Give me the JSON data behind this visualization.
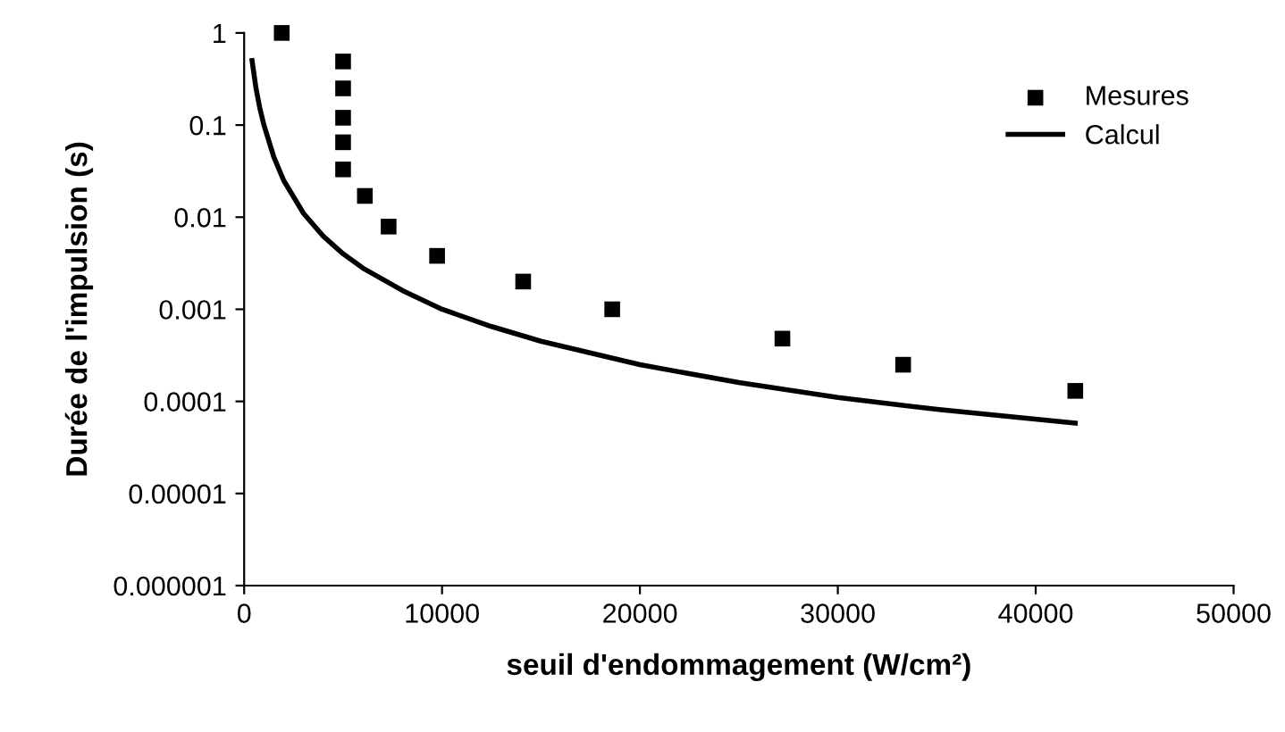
{
  "chart_data": {
    "type": "scatter",
    "xlabel": "seuil d'endommagement (W/cm²)",
    "ylabel": "Durée de l'impulsion (s)",
    "log": "y",
    "grid": false,
    "legend": "top right",
    "xlim": [
      0,
      50000
    ],
    "xticks": [
      0,
      10000,
      20000,
      30000,
      40000,
      50000
    ],
    "ylim": [
      1e-06,
      1
    ],
    "yticks": [
      {
        "value": 1e-06,
        "label": "0.000001"
      },
      {
        "value": 1e-05,
        "label": "0.00001"
      },
      {
        "value": 0.0001,
        "label": "0.0001"
      },
      {
        "value": 0.001,
        "label": "0.001"
      },
      {
        "value": 0.01,
        "label": "0.01"
      },
      {
        "value": 0.1,
        "label": "0.1"
      },
      {
        "value": 1,
        "label": "1"
      }
    ],
    "series": [
      {
        "name": "Mesures",
        "marker": "square",
        "color": "#000000",
        "x": [
          1900,
          5000,
          5000,
          5000,
          5000,
          5000,
          6100,
          7300,
          9750,
          14100,
          18600,
          27200,
          33300,
          42000
        ],
        "values": [
          1,
          0.49,
          0.25,
          0.12,
          0.065,
          0.033,
          0.017,
          0.0079,
          0.0038,
          0.002,
          0.001,
          0.00048,
          0.00025,
          0.00013
        ]
      },
      {
        "name": "Calcul",
        "type": "line",
        "marker": "none",
        "line_style": "solid",
        "color": "#000000",
        "x": [
          400,
          600,
          800,
          1000,
          1500,
          2000,
          3000,
          4000,
          5000,
          6000,
          8000,
          10000,
          12500,
          15000,
          20000,
          25000,
          30000,
          35000,
          42000
        ],
        "values": [
          0.5,
          0.25,
          0.15,
          0.1,
          0.045,
          0.025,
          0.011,
          0.0062,
          0.004,
          0.0028,
          0.0016,
          0.001,
          0.00065,
          0.00045,
          0.00025,
          0.00016,
          0.00011,
          8.2e-05,
          5.8e-05
        ]
      }
    ]
  }
}
